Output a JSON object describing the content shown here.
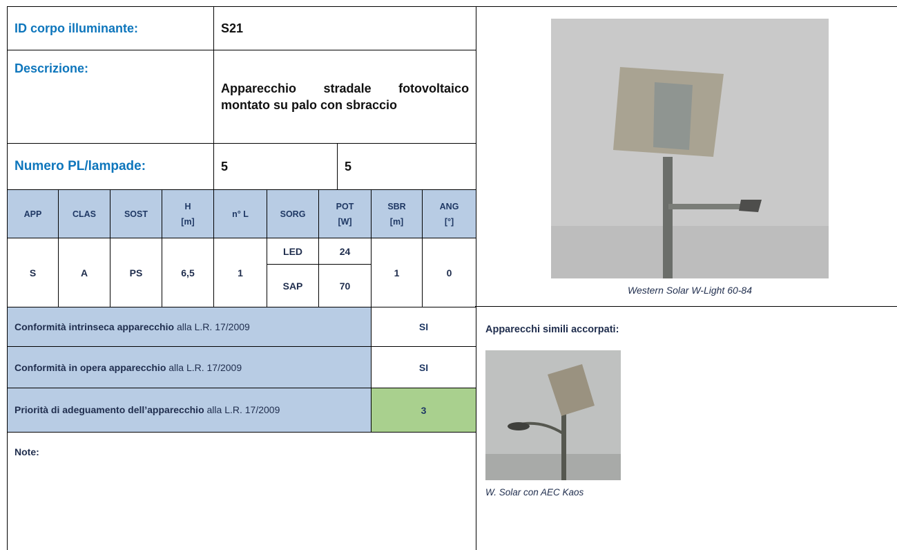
{
  "header": {
    "id": {
      "label": "ID corpo illuminante:",
      "value": "S21"
    },
    "description": {
      "label": "Descrizione:",
      "value": "Apparecchio stradale fotovoltaico montato su palo con sbraccio"
    },
    "lamps": {
      "label": "Numero PL/lampade:",
      "values": [
        "5",
        "5"
      ]
    }
  },
  "table": {
    "columns": [
      "APP",
      "CLAS",
      "SOST",
      "H [m]",
      "n° L",
      "SORG",
      "POT [W]",
      "SBR [m]",
      "ANG [°]"
    ],
    "row": {
      "app": "S",
      "clas": "A",
      "sost": "PS",
      "h": "6,5",
      "n_l": "1",
      "sources": [
        {
          "sorg": "LED",
          "pot": "24"
        },
        {
          "sorg": "SAP",
          "pot": "70"
        }
      ],
      "sbr": "1",
      "ang": "0"
    }
  },
  "compliance": [
    {
      "bold": "Conformità intrinseca apparecchio",
      "text": " alla L.R. 17/2009",
      "value": "SI"
    },
    {
      "bold": "Conformità in opera apparecchio",
      "text": " alla L.R. 17/2009",
      "value": "SI"
    },
    {
      "bold": "Priorità di adeguamento dell’apparecchio",
      "text": " alla L.R. 17/2009",
      "value": "3"
    }
  ],
  "notes": {
    "label": "Note:"
  },
  "image": {
    "caption": "Western Solar W-Light 60-84"
  },
  "similar": {
    "label": "Apparecchi simili accorpati:",
    "caption": "W. Solar con AEC Kaos"
  }
}
